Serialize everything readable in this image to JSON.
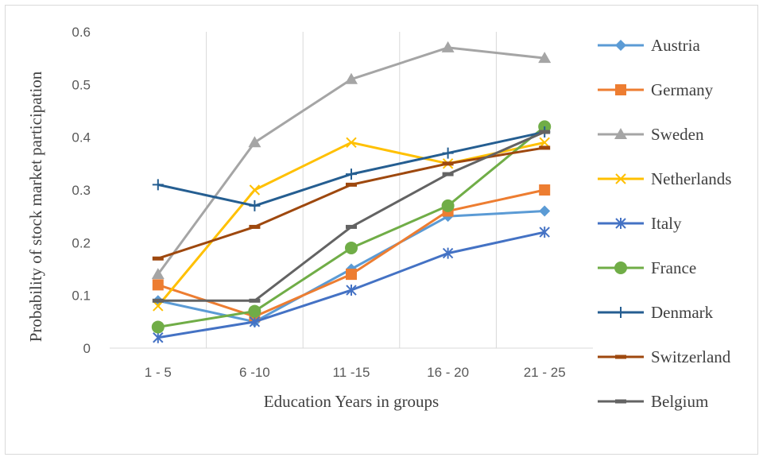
{
  "chart_data": {
    "type": "line",
    "title": "",
    "xlabel": "Education Years in groups",
    "ylabel": "Probability of stock market participation",
    "categories": [
      "1 - 5",
      "6 -10",
      "11 -15",
      "16 - 20",
      "21 - 25"
    ],
    "ylim": [
      0,
      0.6
    ],
    "yticks": [
      "0",
      "0.1",
      "0.2",
      "0.3",
      "0.4",
      "0.5",
      "0.6"
    ],
    "grid": "vertical",
    "legend_position": "right",
    "series": [
      {
        "name": "Austria",
        "color": "#5B9BD5",
        "marker": "diamond",
        "values": [
          0.09,
          0.05,
          0.15,
          0.25,
          0.26
        ]
      },
      {
        "name": "Germany",
        "color": "#ED7D31",
        "marker": "square",
        "values": [
          0.12,
          0.06,
          0.14,
          0.26,
          0.3
        ]
      },
      {
        "name": "Sweden",
        "color": "#A5A5A5",
        "marker": "triangle",
        "values": [
          0.14,
          0.39,
          0.51,
          0.57,
          0.55
        ]
      },
      {
        "name": "Netherlands",
        "color": "#FFC000",
        "marker": "x",
        "values": [
          0.08,
          0.3,
          0.39,
          0.35,
          0.39
        ]
      },
      {
        "name": "Italy",
        "color": "#4472C4",
        "marker": "star",
        "values": [
          0.02,
          0.05,
          0.11,
          0.18,
          0.22
        ]
      },
      {
        "name": "France",
        "color": "#70AD47",
        "marker": "circle",
        "values": [
          0.04,
          0.07,
          0.19,
          0.27,
          0.42
        ]
      },
      {
        "name": "Denmark",
        "color": "#255E91",
        "marker": "plus",
        "values": [
          0.31,
          0.27,
          0.33,
          0.37,
          0.41
        ]
      },
      {
        "name": "Switzerland",
        "color": "#9E480E",
        "marker": "dash",
        "values": [
          0.17,
          0.23,
          0.31,
          0.35,
          0.38
        ]
      },
      {
        "name": "Belgium",
        "color": "#636363",
        "marker": "dash",
        "values": [
          0.09,
          0.09,
          0.23,
          0.33,
          0.41
        ]
      }
    ]
  }
}
